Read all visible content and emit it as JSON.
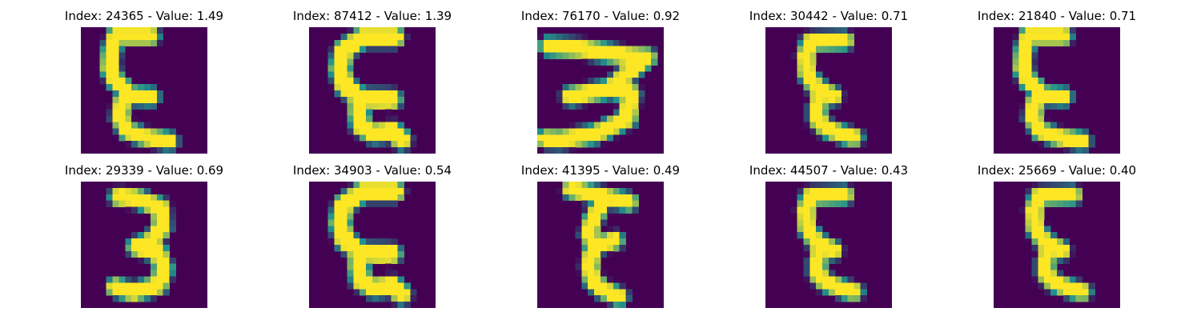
{
  "colors": {
    "background": "#440154",
    "mid": "#21918c",
    "high": "#fde725"
  },
  "panels": [
    {
      "index_label": "Index: 24365",
      "separator": " - ",
      "value_label": "Value: 1.49",
      "glyph": "E-narrow-arms"
    },
    {
      "index_label": "Index: 87412",
      "separator": " - ",
      "value_label": "Value: 1.39",
      "glyph": "E-bold"
    },
    {
      "index_label": "Index: 76170",
      "separator": " - ",
      "value_label": "Value: 0.92",
      "glyph": "3-slanted"
    },
    {
      "index_label": "Index: 30442",
      "separator": " - ",
      "value_label": "Value: 0.71",
      "glyph": "E-standard"
    },
    {
      "index_label": "Index: 21840",
      "separator": " - ",
      "value_label": "Value: 0.71",
      "glyph": "E-narrow-arms"
    },
    {
      "index_label": "Index: 29339",
      "separator": " - ",
      "value_label": "Value: 0.69",
      "glyph": "3-standard"
    },
    {
      "index_label": "Index: 34903",
      "separator": " - ",
      "value_label": "Value: 0.54",
      "glyph": "E-bold"
    },
    {
      "index_label": "Index: 41395",
      "separator": " - ",
      "value_label": "Value: 0.49",
      "glyph": "E-tilted"
    },
    {
      "index_label": "Index: 44507",
      "separator": " - ",
      "value_label": "Value: 0.43",
      "glyph": "E-standard"
    },
    {
      "index_label": "Index: 25669",
      "separator": " - ",
      "value_label": "Value: 0.40",
      "glyph": "E-standard"
    }
  ]
}
